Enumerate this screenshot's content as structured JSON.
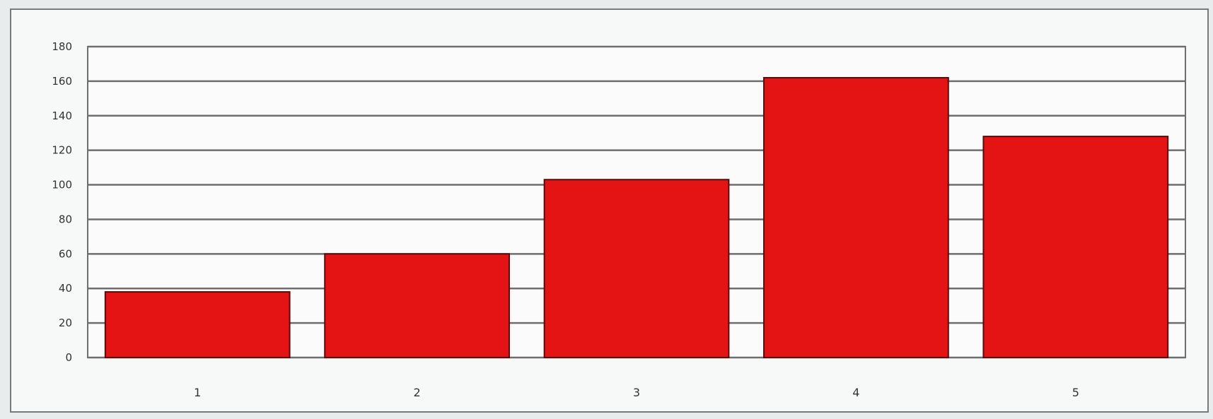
{
  "chart_data": {
    "type": "bar",
    "title": "",
    "xlabel": "",
    "ylabel": "",
    "categories": [
      "1",
      "2",
      "3",
      "4",
      "5"
    ],
    "values": [
      38,
      60,
      103,
      162,
      128
    ],
    "ylim": [
      0,
      180
    ],
    "yticks": [
      "0",
      "20",
      "40",
      "60",
      "80",
      "100",
      "120",
      "140",
      "160",
      "180"
    ],
    "grid": true,
    "legend": "none",
    "colors": {
      "bar": "#e41414",
      "bar_edge": "#5a0a0a",
      "grid": "#6e6e6e",
      "plot_bg": "#fbfbfb",
      "text": "#333333"
    }
  }
}
